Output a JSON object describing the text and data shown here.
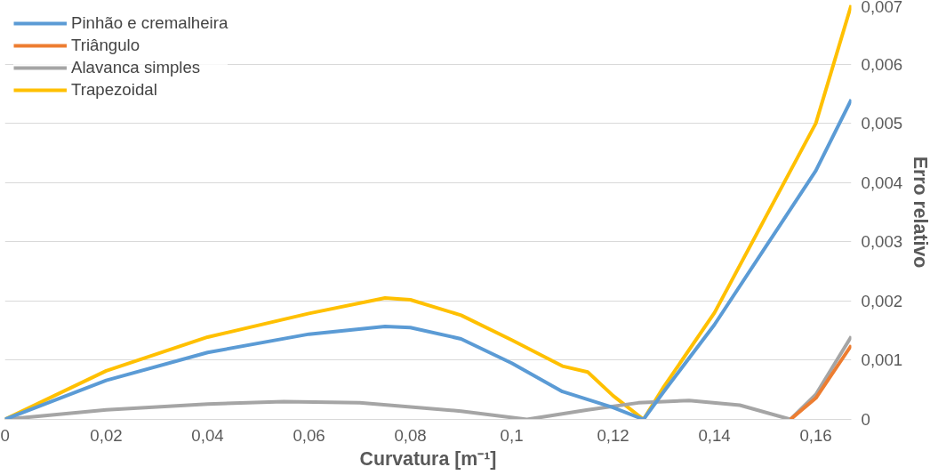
{
  "chart_data": {
    "type": "line",
    "xlabel": "Curvatura [m⁻¹]",
    "ylabel": "Erro relativo",
    "xlim": [
      0,
      0.167
    ],
    "ylim": [
      0,
      0.007
    ],
    "xticks": [
      {
        "value": 0,
        "label": "0"
      },
      {
        "value": 0.02,
        "label": "0,02"
      },
      {
        "value": 0.04,
        "label": "0,04"
      },
      {
        "value": 0.06,
        "label": "0,06"
      },
      {
        "value": 0.08,
        "label": "0,08"
      },
      {
        "value": 0.1,
        "label": "0,1"
      },
      {
        "value": 0.12,
        "label": "0,12"
      },
      {
        "value": 0.14,
        "label": "0,14"
      },
      {
        "value": 0.16,
        "label": "0,16"
      }
    ],
    "yticks": [
      {
        "value": 0,
        "label": "0"
      },
      {
        "value": 0.001,
        "label": "0,001"
      },
      {
        "value": 0.002,
        "label": "0,002"
      },
      {
        "value": 0.003,
        "label": "0,003"
      },
      {
        "value": 0.004,
        "label": "0,004"
      },
      {
        "value": 0.005,
        "label": "0,005"
      },
      {
        "value": 0.006,
        "label": "0,006"
      },
      {
        "value": 0.007,
        "label": "0,007"
      }
    ],
    "grid": "y",
    "legend": "top left",
    "marker": "none",
    "line_style": "solid",
    "series": [
      {
        "name": "Pinhão e cremalheira",
        "color": "#5b9bd5",
        "x": [
          0,
          0.02,
          0.04,
          0.06,
          0.075,
          0.08,
          0.09,
          0.1,
          0.11,
          0.12,
          0.126,
          0.13,
          0.14,
          0.15,
          0.16,
          0.167
        ],
        "values": [
          0,
          0.00066,
          0.00113,
          0.00144,
          0.00157,
          0.00155,
          0.00136,
          0.00095,
          0.00047,
          0.0002,
          0,
          0.00047,
          0.0016,
          0.0029,
          0.0042,
          0.0054
        ]
      },
      {
        "name": "Triângulo",
        "color": "#ed7d31",
        "x": [
          0.155,
          0.16,
          0.167
        ],
        "values": [
          0,
          0.00036,
          0.00125
        ]
      },
      {
        "name": "Alavanca simples",
        "color": "#a5a5a5",
        "x": [
          0,
          0.02,
          0.04,
          0.055,
          0.07,
          0.09,
          0.103,
          0.115,
          0.125,
          0.135,
          0.145,
          0.155,
          0.16,
          0.167
        ],
        "values": [
          0,
          0.00016,
          0.00026,
          0.0003,
          0.00028,
          0.00014,
          0,
          0.00016,
          0.00028,
          0.00032,
          0.00024,
          0,
          0.00042,
          0.0014
        ]
      },
      {
        "name": "Trapezoidal",
        "color": "#ffc000",
        "x": [
          0,
          0.02,
          0.04,
          0.06,
          0.075,
          0.08,
          0.09,
          0.1,
          0.11,
          0.115,
          0.12,
          0.126,
          0.13,
          0.14,
          0.15,
          0.16,
          0.167
        ],
        "values": [
          0,
          0.00082,
          0.00139,
          0.00179,
          0.00205,
          0.00202,
          0.00176,
          0.00134,
          0.0009,
          0.0008,
          0.0004,
          0,
          0.00055,
          0.0018,
          0.0034,
          0.005,
          0.007
        ]
      }
    ]
  }
}
